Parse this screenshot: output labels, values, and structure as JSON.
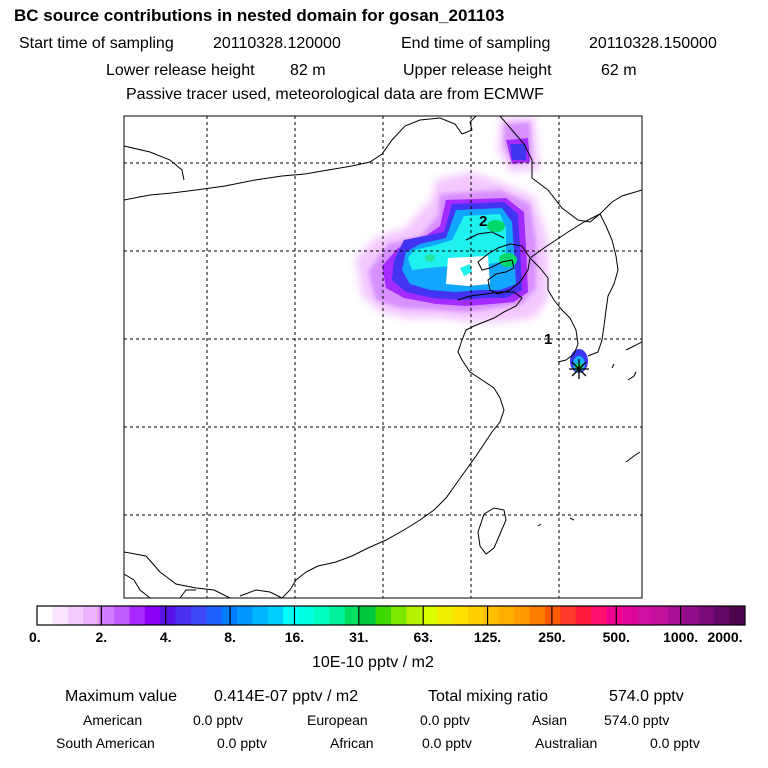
{
  "header": {
    "title": "BC  source contributions in nested domain for gosan_201103",
    "start_label": "Start time of sampling",
    "start_value": "20110328.120000",
    "end_label": "End time of sampling",
    "end_value": "20110328.150000",
    "lower_label": "Lower release height",
    "lower_value": "82 m",
    "upper_label": "Upper release height",
    "upper_value": "62 m",
    "note": "Passive tracer used, meteorological data are from ECMWF"
  },
  "chart_data": {
    "type": "heatmap",
    "title": "BC  source contributions in nested domain for gosan_201103",
    "units": "10E-10 pptv / m2",
    "colorbar_ticks": [
      "0.",
      "2.",
      "4.",
      "8.",
      "16.",
      "31.",
      "63.",
      "125.",
      "250.",
      "500.",
      "1000.",
      "2000."
    ],
    "colors": [
      "#ffffff",
      "#fbe6ff",
      "#f4ccff",
      "#ecb2ff",
      "#d27cff",
      "#c15cff",
      "#a829ff",
      "#8a00f5",
      "#5a13e6",
      "#4a2ff0",
      "#3c47f5",
      "#2060ff",
      "#007cff",
      "#0098ff",
      "#00b4ff",
      "#00d0ff",
      "#00ffff",
      "#00ffe0",
      "#00ffbf",
      "#00f29c",
      "#00e060",
      "#00c73c",
      "#3cd800",
      "#7ce800",
      "#b8f200",
      "#dcff00",
      "#f0f000",
      "#ffe100",
      "#ffd000",
      "#ffc000",
      "#ffae00",
      "#ff9b00",
      "#ff7e00",
      "#ff5a00",
      "#ff3a2a",
      "#ff1a3c",
      "#ff0f6e",
      "#f00090",
      "#e0069c",
      "#d010a0",
      "#c0119a",
      "#a80f92",
      "#900c88",
      "#7a0a7a",
      "#620864",
      "#4c064e"
    ],
    "receptor_labels": [
      "1",
      "2"
    ]
  },
  "stats": {
    "max_label": "Maximum value",
    "max_value": "0.414E-07 pptv / m2",
    "total_label": "Total mixing ratio",
    "total_value": "574.0 pptv",
    "regions": [
      {
        "name": "American",
        "value": "0.0 pptv"
      },
      {
        "name": "European",
        "value": "0.0 pptv"
      },
      {
        "name": "Asian",
        "value": "574.0 pptv"
      },
      {
        "name": "South American",
        "value": "0.0 pptv"
      },
      {
        "name": "African",
        "value": "0.0 pptv"
      },
      {
        "name": "Australian",
        "value": "0.0 pptv"
      }
    ]
  }
}
